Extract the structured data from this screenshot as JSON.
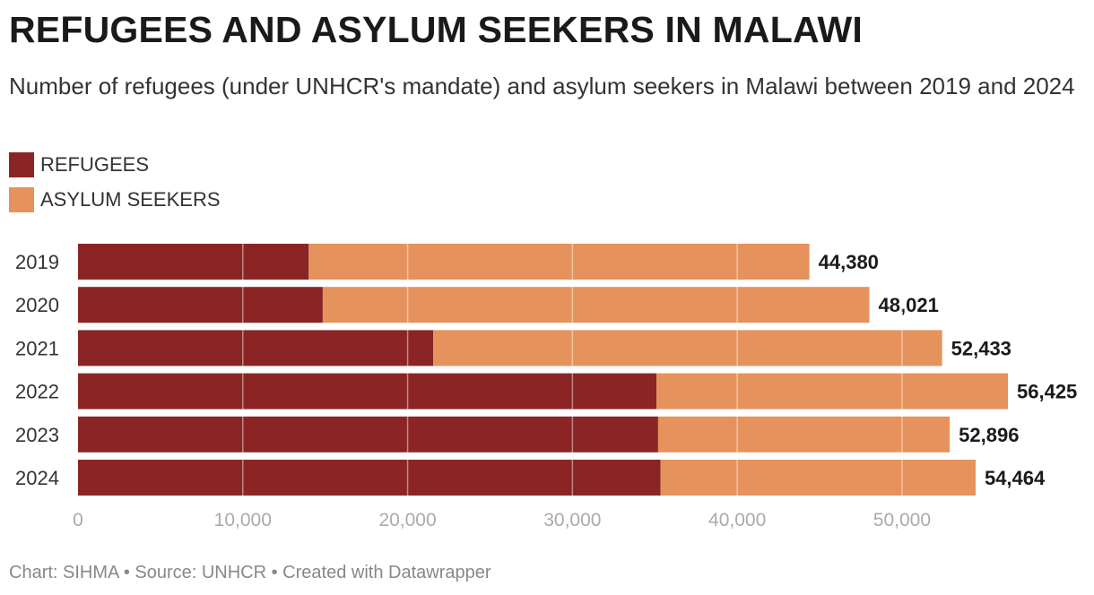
{
  "title": "REFUGEES AND ASYLUM SEEKERS IN MALAWI",
  "subtitle": "Number of refugees (under UNHCR's mandate) and asylum seekers in Malawi between 2019 and 2024",
  "legend": [
    {
      "label": "REFUGEES",
      "color": "#8b2525"
    },
    {
      "label": "ASYLUM SEEKERS",
      "color": "#e6925c"
    }
  ],
  "footer": "Chart: SIHMA • Source: UNHCR • Created with Datawrapper",
  "chart_data": {
    "type": "bar",
    "orientation": "horizontal",
    "stacked": true,
    "categories": [
      "2019",
      "2020",
      "2021",
      "2022",
      "2023",
      "2024"
    ],
    "series": [
      {
        "name": "REFUGEES",
        "color": "#8b2525",
        "values": [
          14000,
          14850,
          21550,
          35100,
          35200,
          35350
        ]
      },
      {
        "name": "ASYLUM SEEKERS",
        "color": "#e6925c",
        "values": [
          30380,
          33171,
          30883,
          21325,
          17696,
          19114
        ]
      }
    ],
    "totals": [
      44380,
      48021,
      52433,
      56425,
      52896,
      54464
    ],
    "total_labels": [
      "44,380",
      "48,021",
      "52,433",
      "56,425",
      "52,896",
      "54,464"
    ],
    "xlim": [
      0,
      56425
    ],
    "xticks": [
      0,
      10000,
      20000,
      30000,
      40000,
      50000
    ],
    "xtick_labels": [
      "0",
      "10,000",
      "20,000",
      "30,000",
      "40,000",
      "50,000"
    ],
    "grid": true,
    "xlabel": "",
    "ylabel": ""
  }
}
